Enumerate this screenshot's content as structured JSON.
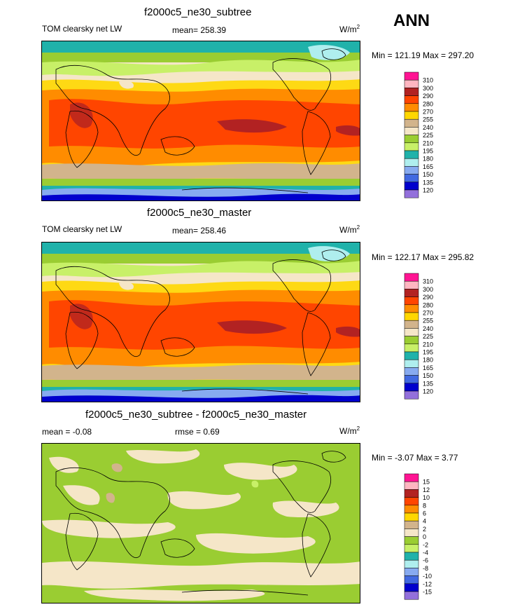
{
  "season": "ANN",
  "panels": [
    {
      "title": "f2000c5_ne30_subtree",
      "left_label": "TOM clearsky net LW",
      "mean": "mean= 258.39",
      "rmse": "",
      "unit": "W/m",
      "unit_sup": "2",
      "minmax": "Min = 121.19 Max = 297.20"
    },
    {
      "title": "f2000c5_ne30_master",
      "left_label": "TOM clearsky net LW",
      "mean": "mean= 258.46",
      "rmse": "",
      "unit": "W/m",
      "unit_sup": "2",
      "minmax": "Min = 122.17 Max = 295.82"
    },
    {
      "title": "f2000c5_ne30_subtree - f2000c5_ne30_master",
      "left_label": "mean =  -0.08",
      "mean": "",
      "rmse": "rmse =   0.69",
      "unit": "W/m",
      "unit_sup": "2",
      "minmax": "Min =  -3.07 Max =   3.77"
    }
  ],
  "colorbars": {
    "field": {
      "labels": [
        "310",
        "300",
        "290",
        "280",
        "270",
        "255",
        "240",
        "225",
        "210",
        "195",
        "180",
        "165",
        "150",
        "135",
        "120"
      ],
      "colors": [
        "#ff1493",
        "#ffb6c1",
        "#b22222",
        "#ff4500",
        "#ff8c00",
        "#ffd700",
        "#d2b48c",
        "#f5e6c8",
        "#9acd32",
        "#c8f068",
        "#20b2aa",
        "#afeeee",
        "#87aaf0",
        "#4169e1",
        "#0000cd",
        "#9370db"
      ]
    },
    "diff": {
      "labels": [
        "15",
        "12",
        "10",
        "8",
        "6",
        "4",
        "2",
        "0",
        "-2",
        "-4",
        "-6",
        "-8",
        "-10",
        "-12",
        "-15"
      ],
      "colors": [
        "#ff1493",
        "#ffb6c1",
        "#b22222",
        "#ff4500",
        "#ff8c00",
        "#ffd700",
        "#d2b48c",
        "#f5e6c8",
        "#9acd32",
        "#c8f068",
        "#20b2aa",
        "#afeeee",
        "#87aaf0",
        "#4169e1",
        "#0000cd",
        "#9370db"
      ]
    }
  },
  "chart_data": [
    {
      "type": "heatmap",
      "title": "f2000c5_ne30_subtree",
      "variable": "TOM clearsky net LW",
      "units": "W/m2",
      "mean": 258.39,
      "min": 121.19,
      "max": 297.2,
      "contour_levels": [
        120,
        135,
        150,
        165,
        180,
        195,
        210,
        225,
        240,
        255,
        270,
        280,
        290,
        300,
        310
      ]
    },
    {
      "type": "heatmap",
      "title": "f2000c5_ne30_master",
      "variable": "TOM clearsky net LW",
      "units": "W/m2",
      "mean": 258.46,
      "min": 122.17,
      "max": 295.82,
      "contour_levels": [
        120,
        135,
        150,
        165,
        180,
        195,
        210,
        225,
        240,
        255,
        270,
        280,
        290,
        300,
        310
      ]
    },
    {
      "type": "heatmap",
      "title": "f2000c5_ne30_subtree - f2000c5_ne30_master",
      "units": "W/m2",
      "mean": -0.08,
      "rmse": 0.69,
      "min": -3.07,
      "max": 3.77,
      "contour_levels": [
        -15,
        -12,
        -10,
        -8,
        -6,
        -4,
        -2,
        0,
        2,
        4,
        6,
        8,
        10,
        12,
        15
      ]
    }
  ]
}
